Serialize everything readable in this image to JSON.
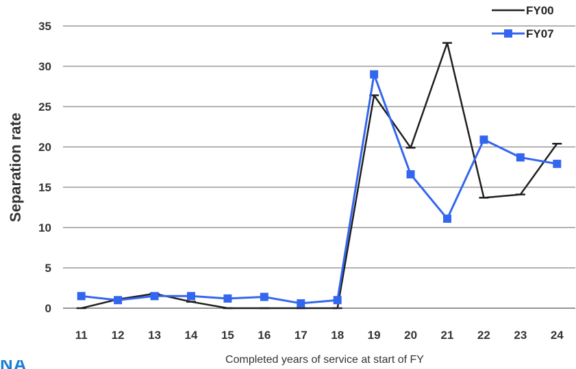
{
  "chart_data": {
    "type": "line",
    "title": "",
    "xlabel": "Completed years of service at start of FY",
    "ylabel": "Separation rate",
    "categories": [
      "11",
      "12",
      "13",
      "14",
      "15",
      "16",
      "17",
      "18",
      "19",
      "20",
      "21",
      "22",
      "23",
      "24"
    ],
    "yticks": [
      "0",
      "5",
      "10",
      "15",
      "20",
      "25",
      "30",
      "35"
    ],
    "ylim": [
      0,
      35
    ],
    "grid": "horizontal",
    "legend_position": "top-right",
    "series": [
      {
        "name": "FY00",
        "color": "#1f1f1f",
        "marker": "dash",
        "values": [
          0,
          1.1,
          1.8,
          0.8,
          0,
          0,
          0,
          0,
          26.4,
          19.9,
          32.9,
          13.7,
          14.1,
          20.4
        ]
      },
      {
        "name": "FY07",
        "color": "#3366ee",
        "marker": "square",
        "values": [
          1.5,
          1.0,
          1.5,
          1.5,
          1.2,
          1.4,
          0.6,
          1.0,
          29.0,
          16.6,
          11.1,
          20.9,
          18.7,
          17.9
        ]
      }
    ]
  },
  "logo": {
    "text": "NA",
    "color": "#1a7fd4"
  }
}
